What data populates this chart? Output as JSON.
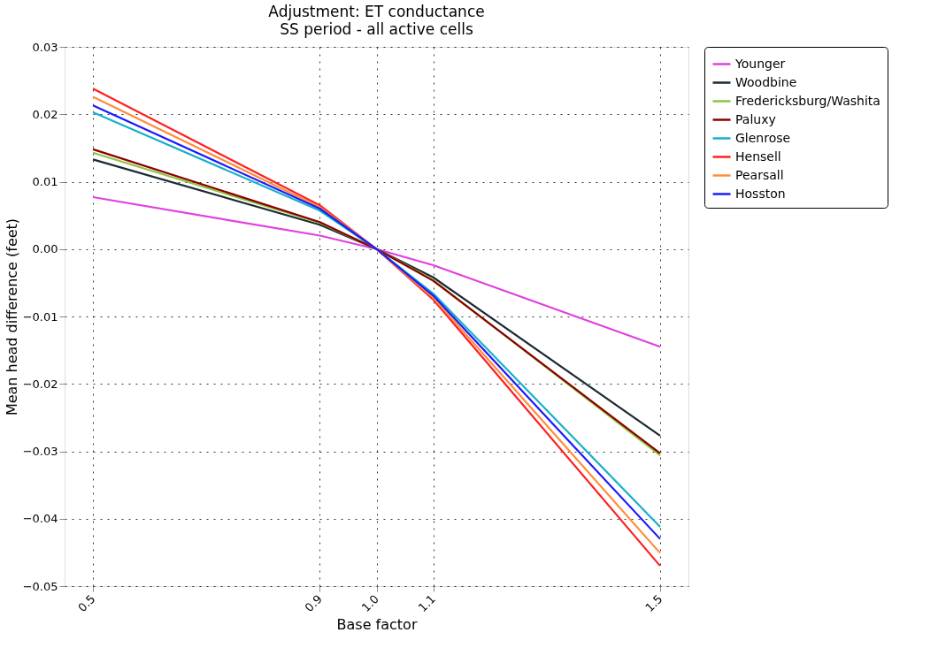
{
  "chart_data": {
    "type": "line",
    "title": "Adjustment: ET conductance",
    "subtitle": "SS period - all active cells",
    "xlabel": "Base factor",
    "ylabel": "Mean head difference (feet)",
    "x": [
      0.5,
      0.9,
      1.0,
      1.1,
      1.5
    ],
    "xlim": [
      0.45,
      1.55
    ],
    "xticks": [
      0.5,
      0.9,
      {
        "value": 1.0,
        "label": "1.0"
      },
      1.1,
      1.5
    ],
    "ylim": [
      -0.05,
      0.03
    ],
    "yticks": [
      {
        "value": -0.05,
        "label": "−0.05"
      },
      {
        "value": -0.04,
        "label": "−0.04"
      },
      {
        "value": -0.03,
        "label": "−0.03"
      },
      {
        "value": -0.02,
        "label": "−0.02"
      },
      {
        "value": -0.01,
        "label": "−0.01"
      },
      {
        "value": 0,
        "label": "0.00"
      },
      {
        "value": 0.01,
        "label": "0.01"
      },
      {
        "value": 0.02,
        "label": "0.02"
      },
      {
        "value": 0.03,
        "label": "0.03"
      }
    ],
    "series": [
      {
        "name": "Younger",
        "color": "#e040e0",
        "values": [
          0.0077,
          0.002,
          0,
          -0.0024,
          -0.0145
        ]
      },
      {
        "name": "Woodbine",
        "color": "#1a2a33",
        "values": [
          0.0133,
          0.0036,
          0,
          -0.0042,
          -0.0277
        ]
      },
      {
        "name": "Fredericksburg/Washita",
        "color": "#8dc63f",
        "values": [
          0.0143,
          0.0039,
          0,
          -0.0046,
          -0.0306
        ]
      },
      {
        "name": "Paluxy",
        "color": "#8b0000",
        "values": [
          0.0148,
          0.004,
          0,
          -0.0047,
          -0.0303
        ]
      },
      {
        "name": "Glenrose",
        "color": "#17b0c8",
        "values": [
          0.0203,
          0.0057,
          0,
          -0.0066,
          -0.0412
        ]
      },
      {
        "name": "Hensell",
        "color": "#ff2020",
        "values": [
          0.0238,
          0.0065,
          0,
          -0.0075,
          -0.047
        ]
      },
      {
        "name": "Pearsall",
        "color": "#ff8c3a",
        "values": [
          0.0226,
          0.0062,
          0,
          -0.0072,
          -0.0451
        ]
      },
      {
        "name": "Hosston",
        "color": "#1a1aff",
        "values": [
          0.0213,
          0.006,
          0,
          -0.0069,
          -0.043
        ]
      }
    ],
    "grid": true,
    "legend": "top right",
    "marker": "none",
    "line_style": "solid"
  }
}
